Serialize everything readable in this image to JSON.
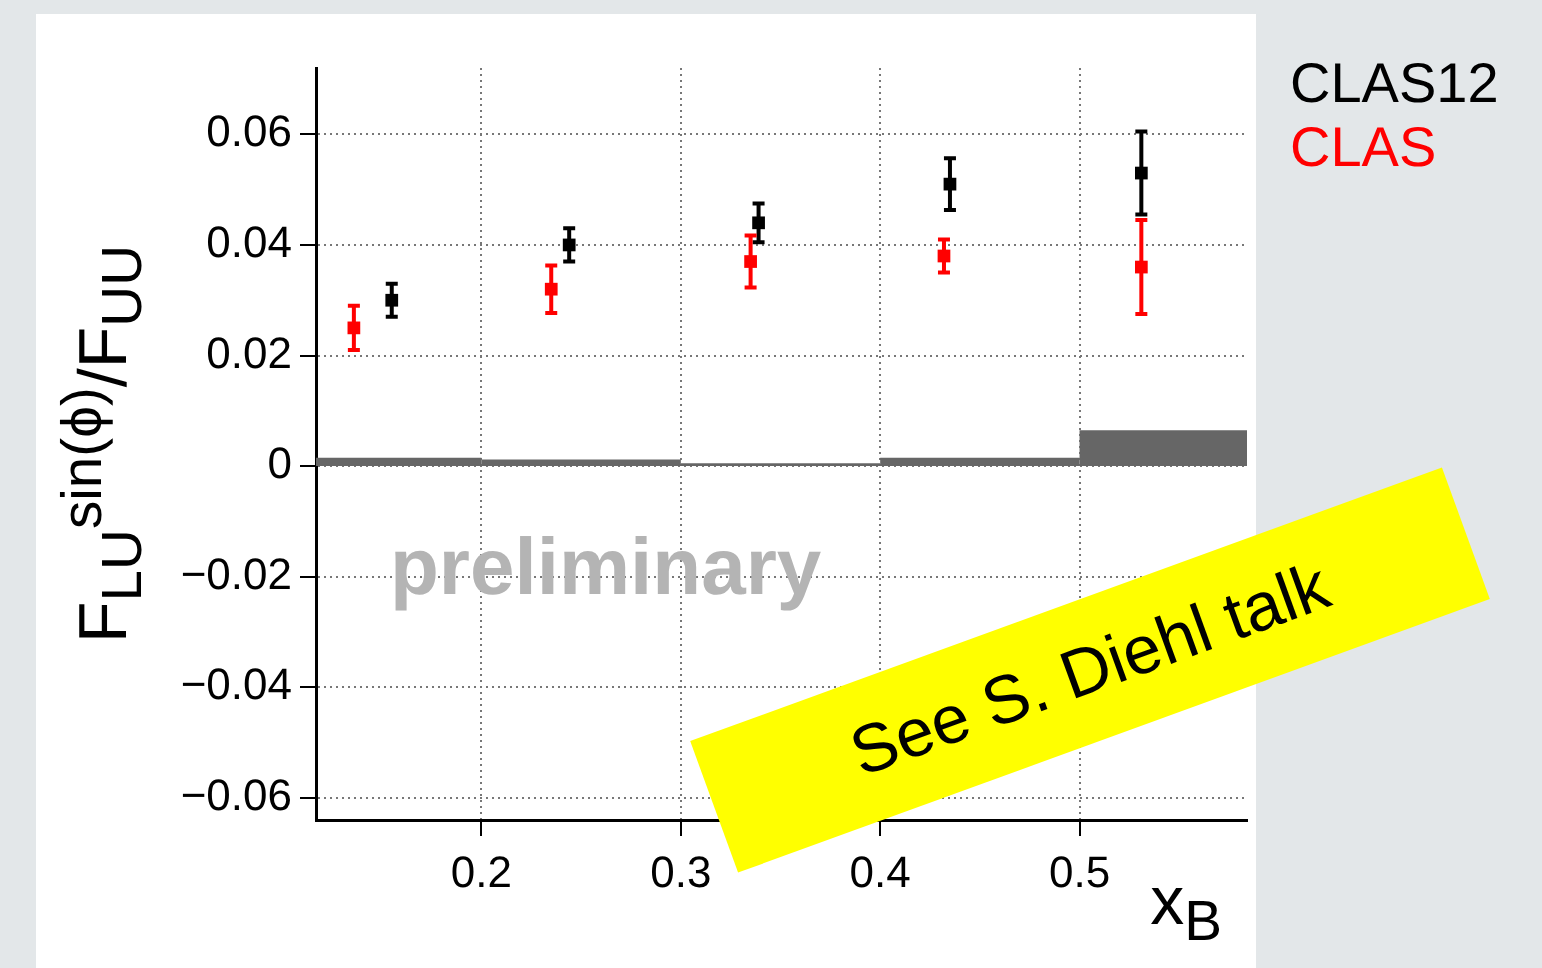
{
  "chart_data": {
    "type": "scatter",
    "xlabel": "x$_{B}$",
    "ylabel": "F$_{LU}$$^{sin(ϕ)}$/F$_{UU}$",
    "series": [
      {
        "name": "CLAS12",
        "color": "#000000",
        "x": [
          0.155,
          0.244,
          0.339,
          0.435,
          0.531
        ],
        "values": [
          0.03,
          0.04,
          0.044,
          0.051,
          0.053
        ],
        "errors": [
          0.003,
          0.003,
          0.0035,
          0.0047,
          0.0075
        ]
      },
      {
        "name": "CLAS",
        "color": "#ff0000",
        "x": [
          0.136,
          0.235,
          0.335,
          0.432,
          0.531
        ],
        "values": [
          0.025,
          0.032,
          0.037,
          0.038,
          0.036
        ],
        "errors": [
          0.004,
          0.0043,
          0.0047,
          0.003,
          0.0085
        ]
      },
      {
        "type": "histogram",
        "color": "#666666",
        "bins": [
          0.117,
          0.2,
          0.3,
          0.4,
          0.5,
          0.584
        ],
        "values": [
          0.0015,
          0.0012,
          0.0005,
          0.0015,
          0.0065
        ]
      }
    ],
    "xlim": [
      0.117,
      0.584
    ],
    "xticks": [
      0.2,
      0.3,
      0.4,
      0.5
    ],
    "ylim": [
      -0.064,
      0.072
    ],
    "yticks": [
      {
        "value": -0.06,
        "label": "−0.06"
      },
      {
        "value": -0.04,
        "label": "−0.04"
      },
      {
        "value": -0.02,
        "label": "−0.02"
      },
      0,
      0.02,
      0.04,
      0.06
    ],
    "grid": true,
    "line_style": "dotted",
    "marker": "square",
    "legend": "top right",
    "annotations": [
      "preliminary",
      "See S. Diehl talk"
    ]
  }
}
